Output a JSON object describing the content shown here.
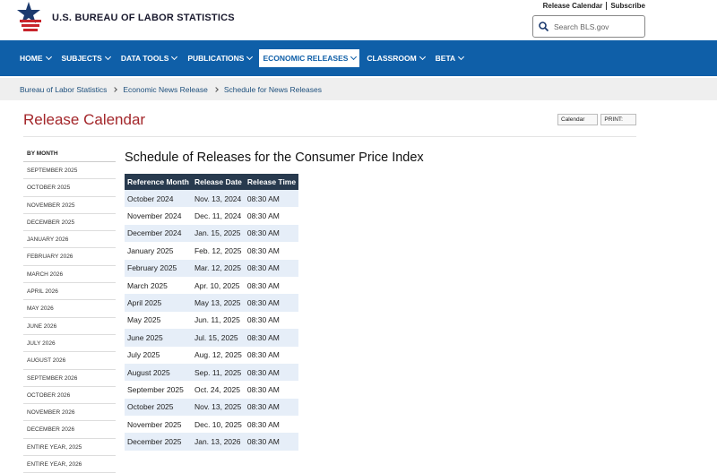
{
  "header": {
    "logo_text": "U.S. BUREAU OF LABOR STATISTICS",
    "top_links": [
      "Release Calendar",
      "Subscribe"
    ],
    "search_placeholder": "Search BLS.gov"
  },
  "nav": {
    "items": [
      "HOME",
      "SUBJECTS",
      "DATA TOOLS",
      "PUBLICATIONS",
      "ECONOMIC RELEASES",
      "CLASSROOM",
      "BETA"
    ],
    "active": 4
  },
  "breadcrumb": [
    "Bureau of Labor Statistics",
    "Economic News Release",
    "Schedule for News Releases"
  ],
  "page_title": "Release Calendar",
  "tools": [
    "Calendar",
    "PRINT:"
  ],
  "sidebar": {
    "heading": "BY MONTH",
    "items": [
      "SEPTEMBER 2025",
      "OCTOBER 2025",
      "NOVEMBER 2025",
      "DECEMBER 2025",
      "JANUARY 2026",
      "FEBRUARY 2026",
      "MARCH 2026",
      "APRIL 2026",
      "MAY 2026",
      "JUNE 2026",
      "JULY 2026",
      "AUGUST 2026",
      "SEPTEMBER 2026",
      "OCTOBER 2026",
      "NOVEMBER 2026",
      "DECEMBER 2026",
      "ENTIRE YEAR, 2025",
      "ENTIRE YEAR, 2026"
    ]
  },
  "content": {
    "title": "Schedule of Releases for the Consumer Price Index",
    "table": {
      "headers": [
        "Reference Month",
        "Release Date",
        "Release Time"
      ],
      "rows": [
        [
          "October 2024",
          "Nov. 13, 2024",
          "08:30 AM"
        ],
        [
          "November 2024",
          "Dec. 11, 2024",
          "08:30 AM"
        ],
        [
          "December 2024",
          "Jan. 15, 2025",
          "08:30 AM"
        ],
        [
          "January 2025",
          "Feb. 12, 2025",
          "08:30 AM"
        ],
        [
          "February 2025",
          "Mar. 12, 2025",
          "08:30 AM"
        ],
        [
          "March 2025",
          "Apr. 10, 2025",
          "08:30 AM"
        ],
        [
          "April 2025",
          "May 13, 2025",
          "08:30 AM"
        ],
        [
          "May 2025",
          "Jun. 11, 2025",
          "08:30 AM"
        ],
        [
          "June 2025",
          "Jul. 15, 2025",
          "08:30 AM"
        ],
        [
          "July 2025",
          "Aug. 12, 2025",
          "08:30 AM"
        ],
        [
          "August 2025",
          "Sep. 11, 2025",
          "08:30 AM"
        ],
        [
          "September 2025",
          "Oct. 24, 2025",
          "08:30 AM"
        ],
        [
          "October 2025",
          "Nov. 13, 2025",
          "08:30 AM"
        ],
        [
          "November 2025",
          "Dec. 10, 2025",
          "08:30 AM"
        ],
        [
          "December 2025",
          "Jan. 13, 2026",
          "08:30 AM"
        ]
      ]
    }
  }
}
